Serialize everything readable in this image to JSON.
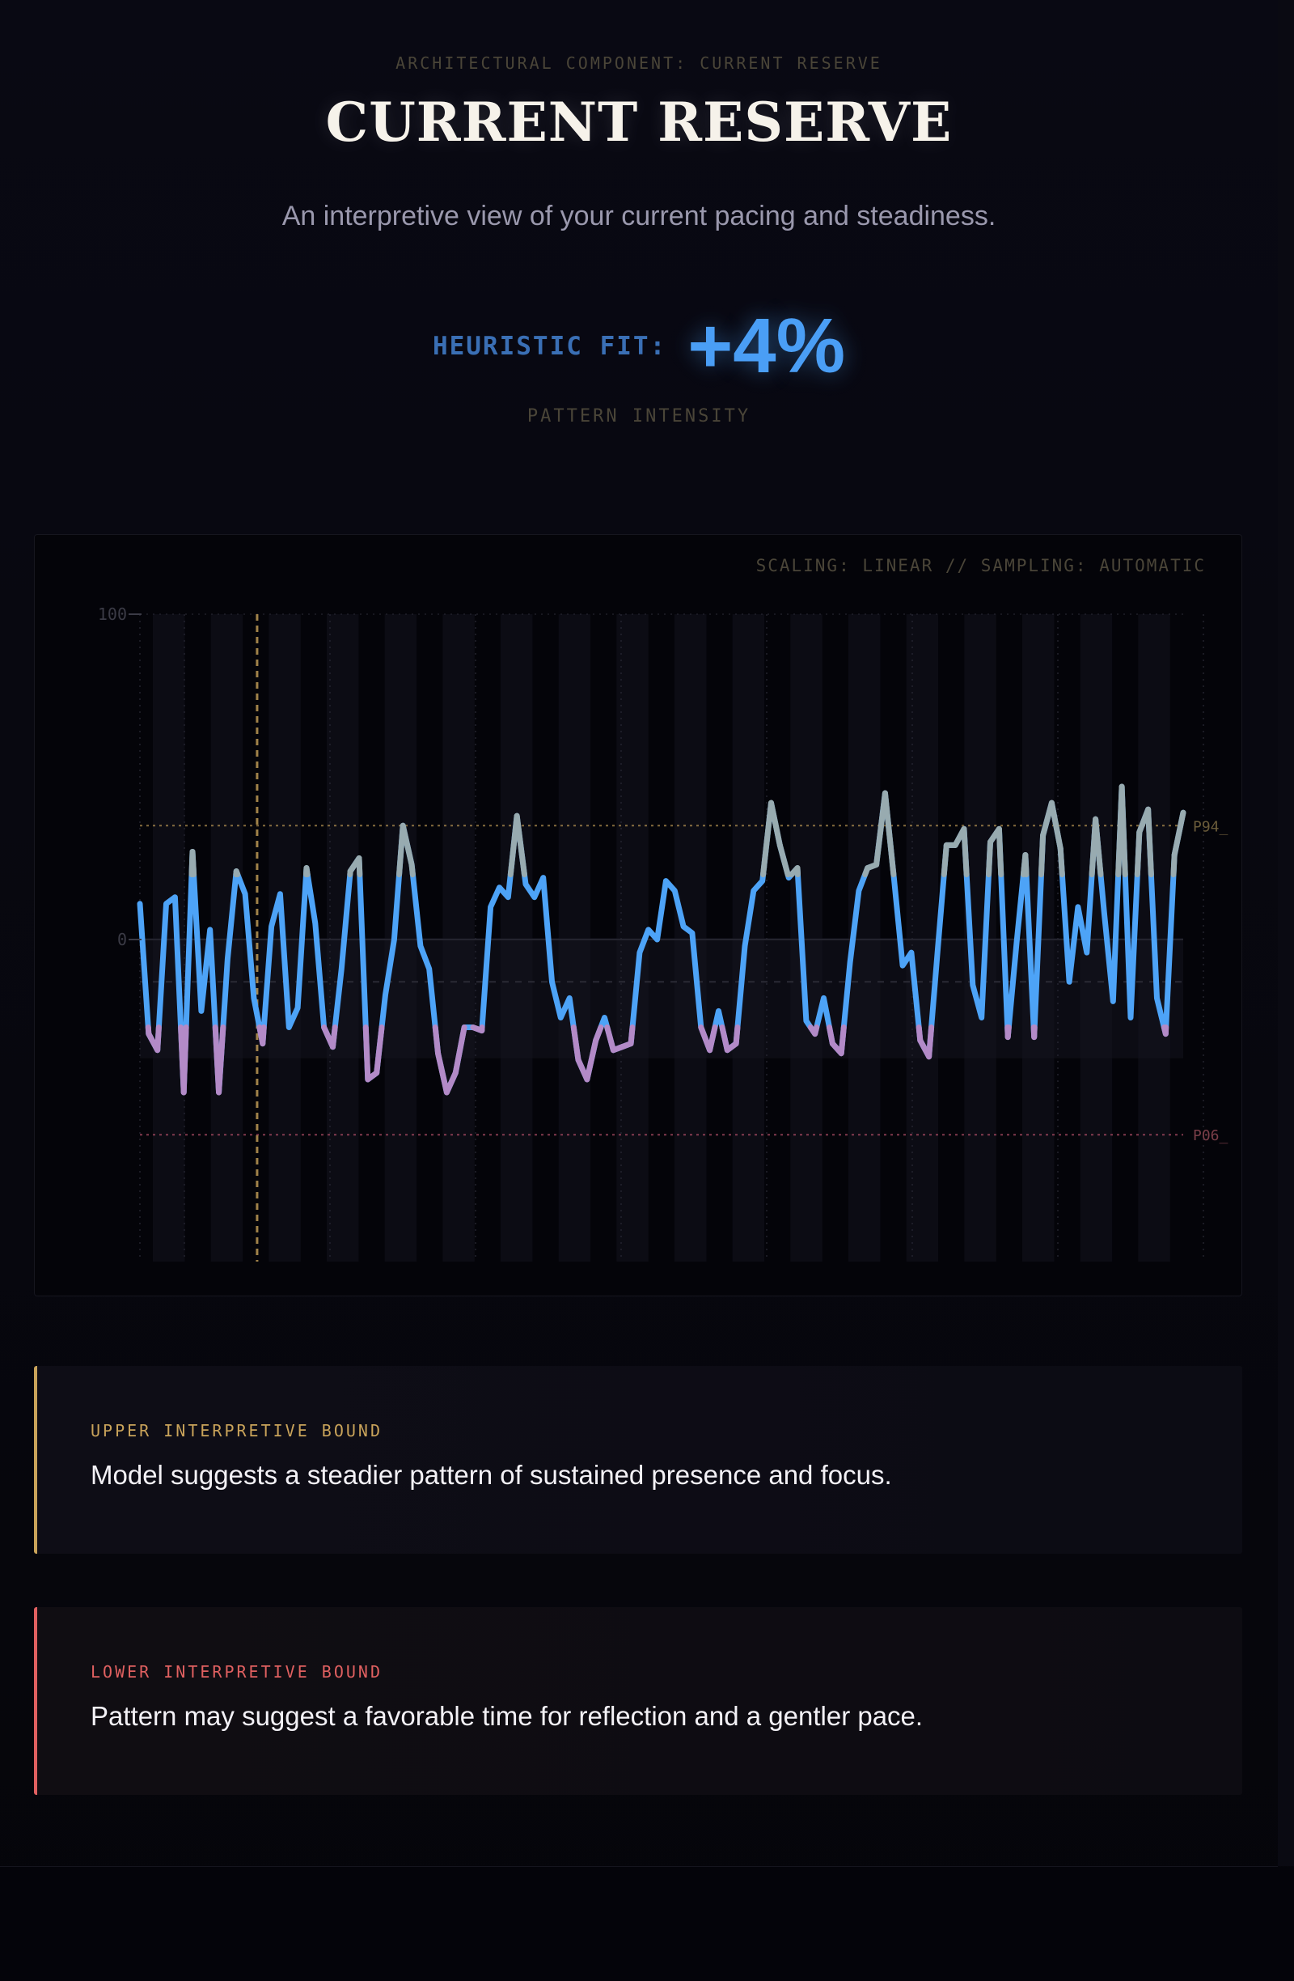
{
  "header": {
    "eyebrow": "ARCHITECTURAL COMPONENT: CURRENT RESERVE",
    "title": "CURRENT RESERVE",
    "subtitle": "An interpretive view of your current pacing and steadiness."
  },
  "metric": {
    "label": "HEURISTIC FIT:",
    "value": "+4%",
    "caption": "PATTERN INTENSITY",
    "color": "#4a9ef5"
  },
  "chart_meta": "SCALING: LINEAR // SAMPLING: AUTOMATIC",
  "chart_data": {
    "type": "line",
    "y_ticks": [
      "100",
      "0"
    ],
    "y_tick_values": [
      100,
      0
    ],
    "ylim": [
      -100,
      100
    ],
    "upper_ref": {
      "label": "P94_",
      "value": 35
    },
    "lower_ref": {
      "label": "P06_",
      "value": -60
    },
    "mid_dashed": -13,
    "cursor_x_index": 13,
    "colors": {
      "line": "#4da3f7",
      "high": "#98abb0",
      "low": "#b38ac7",
      "upper_ref": "#c9a35a",
      "lower_ref": "#b8506a",
      "cursor": "#c9a35a"
    },
    "values": [
      11,
      -29,
      -34,
      11,
      13,
      -47,
      27,
      -22,
      3,
      -47,
      -6,
      21,
      14,
      -18,
      -32,
      4,
      14,
      -27,
      -21,
      22,
      5,
      -27,
      -33,
      -9,
      21,
      25,
      -43,
      -41,
      -17,
      0,
      35,
      23,
      -2,
      -9,
      -35,
      -47,
      -41,
      -27,
      -27,
      -28,
      10,
      16,
      13,
      38,
      17,
      13,
      19,
      -13,
      -24,
      -18,
      -37,
      -43,
      -31,
      -24,
      -34,
      -33,
      -32,
      -4,
      3,
      0,
      18,
      15,
      4,
      2,
      -27,
      -34,
      -22,
      -34,
      -32,
      -2,
      15,
      18,
      42,
      29,
      19,
      22,
      -25,
      -29,
      -18,
      -32,
      -35,
      -7,
      15,
      22,
      23,
      45,
      19,
      -8,
      -4,
      -31,
      -36,
      -3,
      29,
      29,
      34,
      -14,
      -24,
      30,
      34,
      -30,
      -1,
      26,
      -30,
      32,
      42,
      28,
      -13,
      10,
      -4,
      37,
      8,
      -19,
      47,
      -24,
      33,
      40,
      -18,
      -29,
      26,
      39
    ],
    "band_count": 18
  },
  "bounds": {
    "upper": {
      "label": "UPPER INTERPRETIVE BOUND",
      "text": "Model suggests a steadier pattern of sustained presence and focus."
    },
    "lower": {
      "label": "LOWER INTERPRETIVE BOUND",
      "text": "Pattern may suggest a favorable time for reflection and a gentler pace."
    }
  }
}
